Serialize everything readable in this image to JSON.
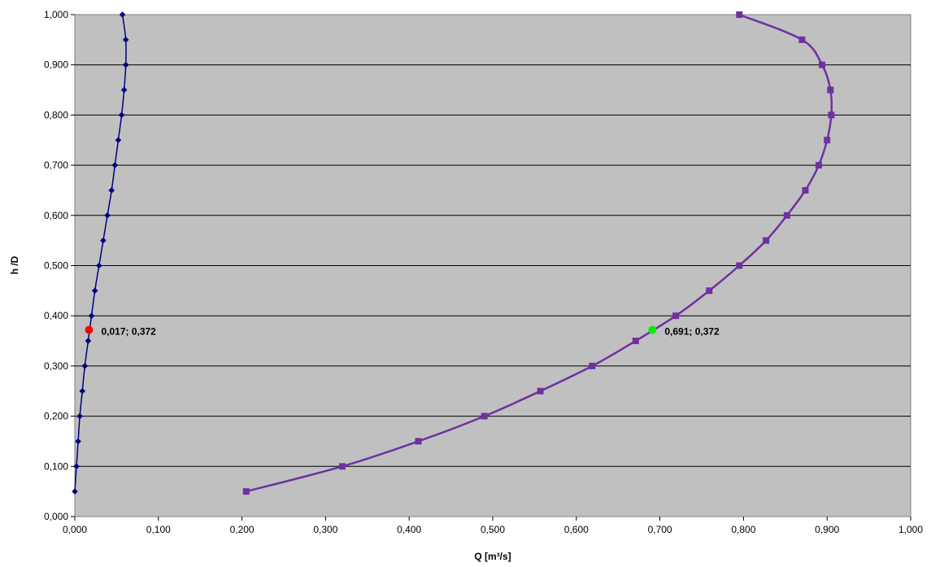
{
  "chart_data": {
    "type": "scatter",
    "xlabel": "Q [m³/s]",
    "ylabel": "h /D",
    "xlim": [
      0,
      1
    ],
    "ylim": [
      0,
      1
    ],
    "xticks": [
      "0,000",
      "0,100",
      "0,200",
      "0,300",
      "0,400",
      "0,500",
      "0,600",
      "0,700",
      "0,800",
      "0,900",
      "1,000"
    ],
    "yticks": [
      "0,000",
      "0,100",
      "0,200",
      "0,300",
      "0,400",
      "0,500",
      "0,600",
      "0,700",
      "0,800",
      "0,900",
      "1,000"
    ],
    "grid": "horizontal",
    "plot_background": "#c0c0c0",
    "series": [
      {
        "color": "#000080",
        "marker": "diamond",
        "points": [
          [
            0.0,
            0.05
          ],
          [
            0.002,
            0.1
          ],
          [
            0.004,
            0.15
          ],
          [
            0.006,
            0.2
          ],
          [
            0.009,
            0.25
          ],
          [
            0.012,
            0.3
          ],
          [
            0.016,
            0.35
          ],
          [
            0.02,
            0.4
          ],
          [
            0.024,
            0.45
          ],
          [
            0.029,
            0.5
          ],
          [
            0.034,
            0.55
          ],
          [
            0.039,
            0.6
          ],
          [
            0.044,
            0.65
          ],
          [
            0.048,
            0.7
          ],
          [
            0.052,
            0.75
          ],
          [
            0.056,
            0.8
          ],
          [
            0.059,
            0.85
          ],
          [
            0.061,
            0.9
          ],
          [
            0.061,
            0.95
          ],
          [
            0.057,
            1.0
          ]
        ]
      },
      {
        "color": "#7030a0",
        "marker": "square",
        "points": [
          [
            0.205,
            0.05
          ],
          [
            0.32,
            0.1
          ],
          [
            0.411,
            0.15
          ],
          [
            0.49,
            0.2
          ],
          [
            0.557,
            0.25
          ],
          [
            0.619,
            0.3
          ],
          [
            0.671,
            0.35
          ],
          [
            0.719,
            0.4
          ],
          [
            0.759,
            0.45
          ],
          [
            0.795,
            0.5
          ],
          [
            0.827,
            0.55
          ],
          [
            0.852,
            0.6
          ],
          [
            0.874,
            0.65
          ],
          [
            0.89,
            0.7
          ],
          [
            0.9,
            0.75
          ],
          [
            0.905,
            0.8
          ],
          [
            0.904,
            0.85
          ],
          [
            0.894,
            0.9
          ],
          [
            0.87,
            0.95
          ],
          [
            0.795,
            1.0
          ]
        ]
      }
    ],
    "highlights": [
      {
        "x": 0.017,
        "y": 0.372,
        "color": "#ff0000",
        "label": "0,017;  0,372"
      },
      {
        "x": 0.691,
        "y": 0.372,
        "color": "#00ee00",
        "label": "0,691;  0,372"
      }
    ]
  }
}
